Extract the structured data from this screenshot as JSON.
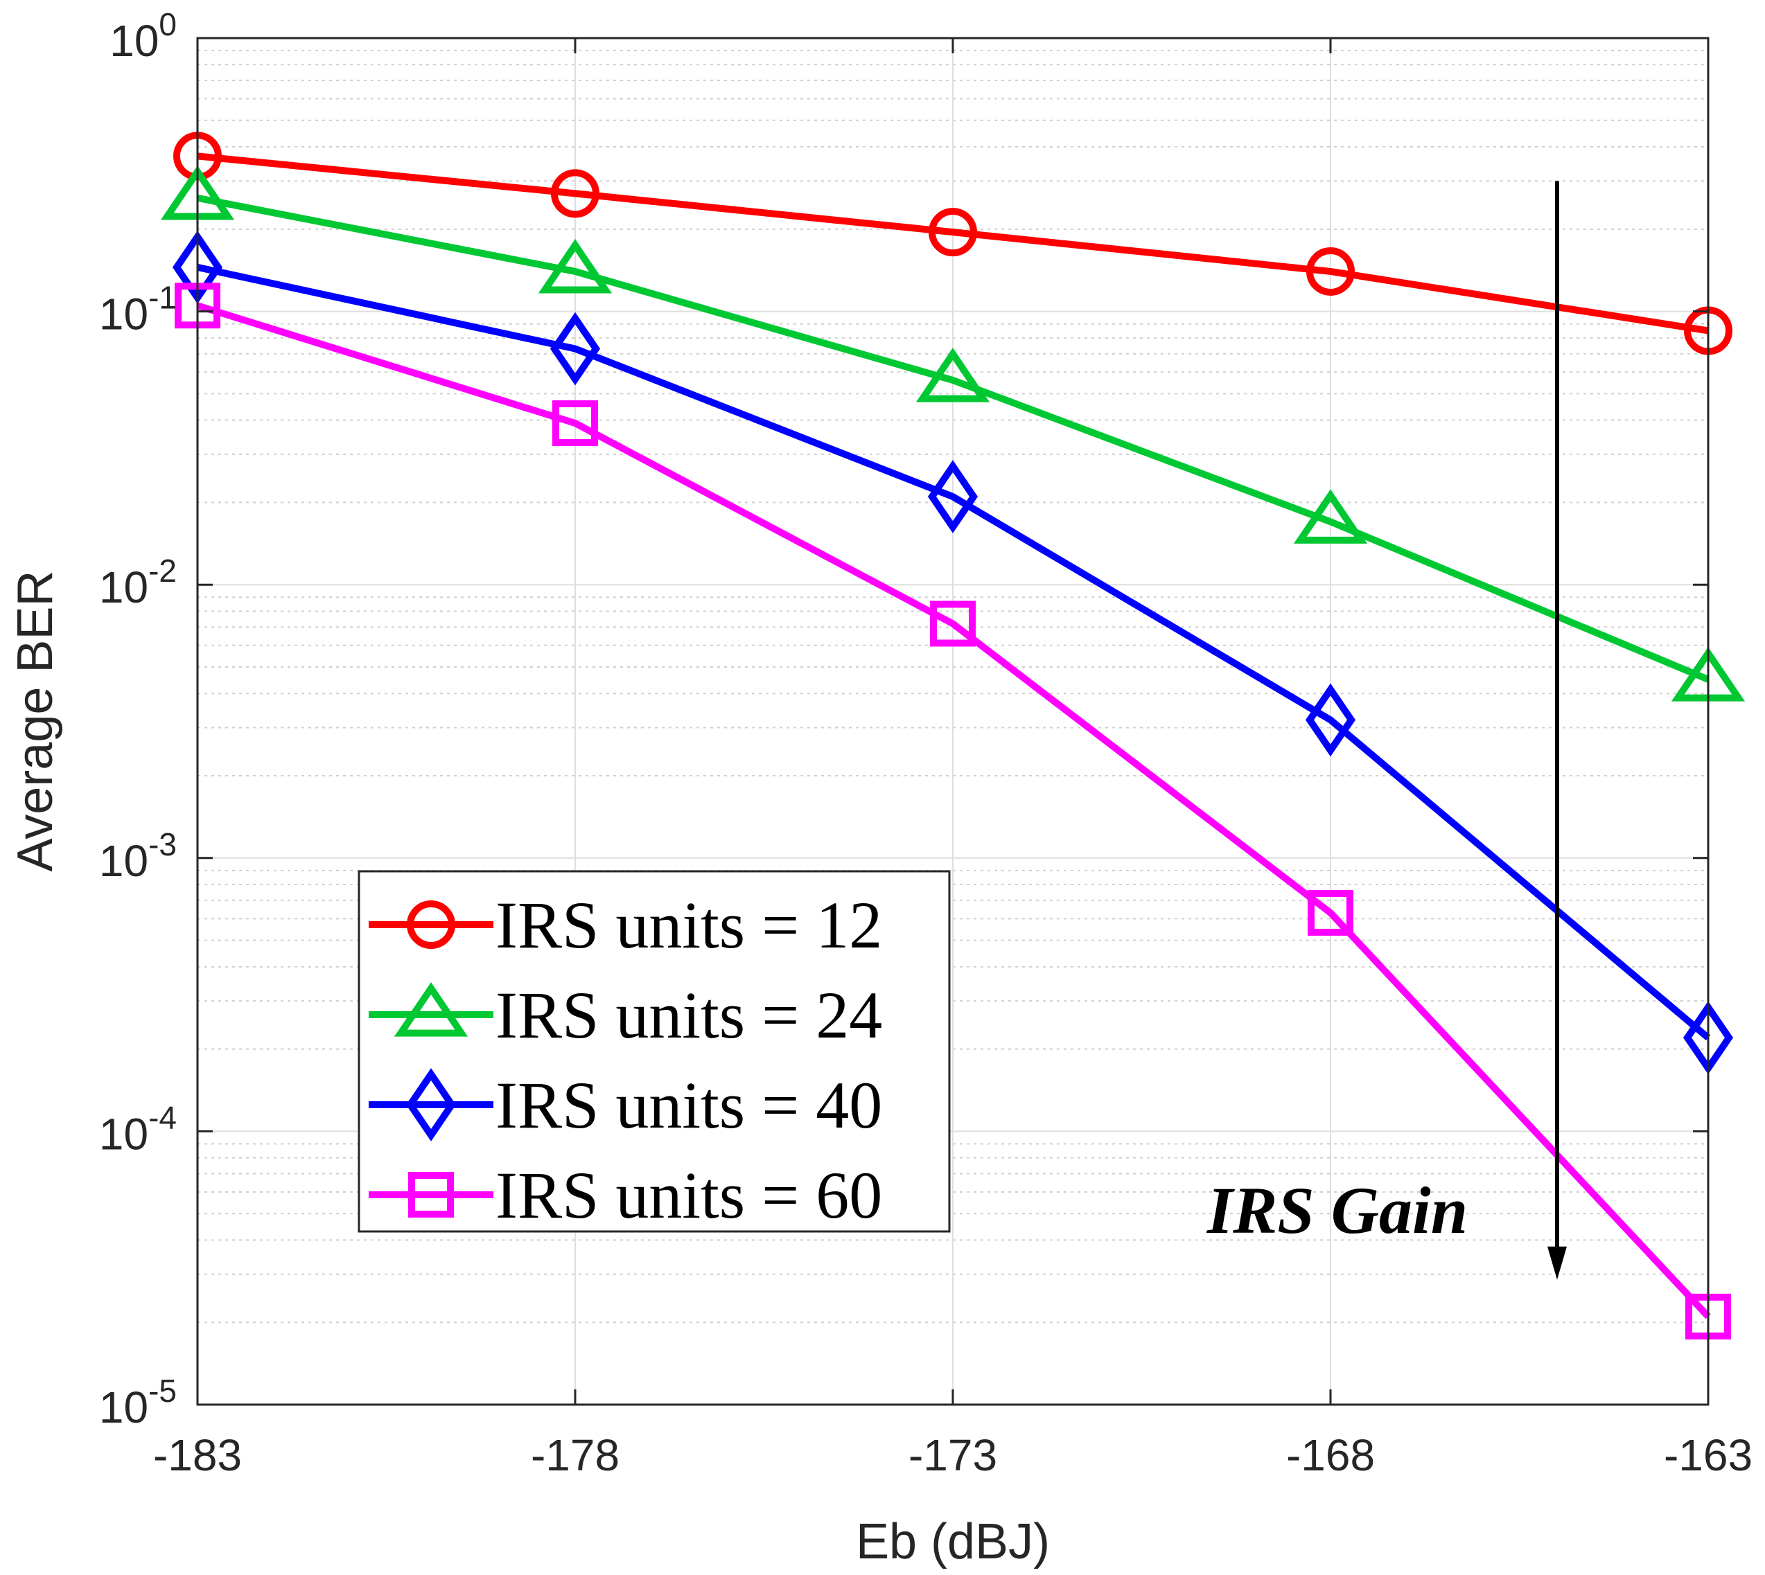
{
  "chart_data": {
    "type": "line",
    "xlabel": "Eb (dBJ)",
    "ylabel": "Average BER",
    "x": [
      -183,
      -178,
      -173,
      -168,
      -163
    ],
    "xlim": [
      -183,
      -163
    ],
    "xticks": [
      -183,
      -178,
      -173,
      -168,
      -163
    ],
    "xtick_labels": [
      "-183",
      "-178",
      "-173",
      "-168",
      "-163"
    ],
    "yscale": "log",
    "ylim": [
      1e-05,
      1
    ],
    "yticks": [
      {
        "value": 1,
        "base": "10",
        "exp": "0"
      },
      {
        "value": 0.1,
        "base": "10",
        "exp": "-1"
      },
      {
        "value": 0.01,
        "base": "10",
        "exp": "-2"
      },
      {
        "value": 0.001,
        "base": "10",
        "exp": "-3"
      },
      {
        "value": 0.0001,
        "base": "10",
        "exp": "-4"
      },
      {
        "value": 1e-05,
        "base": "10",
        "exp": "-5"
      }
    ],
    "grid": true,
    "legend_position": "bottom-left",
    "series": [
      {
        "name": "IRS units = 12",
        "color": "#ff0000",
        "marker": "circle",
        "values": [
          0.37,
          0.27,
          0.195,
          0.14,
          0.085
        ]
      },
      {
        "name": "IRS units = 24",
        "color": "#00c832",
        "marker": "triangle",
        "values": [
          0.26,
          0.14,
          0.056,
          0.017,
          0.0045
        ]
      },
      {
        "name": "IRS units = 40",
        "color": "#0000ff",
        "marker": "diamond",
        "values": [
          0.145,
          0.073,
          0.021,
          0.0032,
          0.00022
        ]
      },
      {
        "name": "IRS units = 60",
        "color": "#ff00ff",
        "marker": "square",
        "values": [
          0.105,
          0.039,
          0.0072,
          0.00063,
          2.1e-05
        ]
      }
    ],
    "annotation": {
      "text": "IRS Gain",
      "arrow_x": -165,
      "arrow_from": 0.3,
      "arrow_to": 3e-05
    }
  }
}
